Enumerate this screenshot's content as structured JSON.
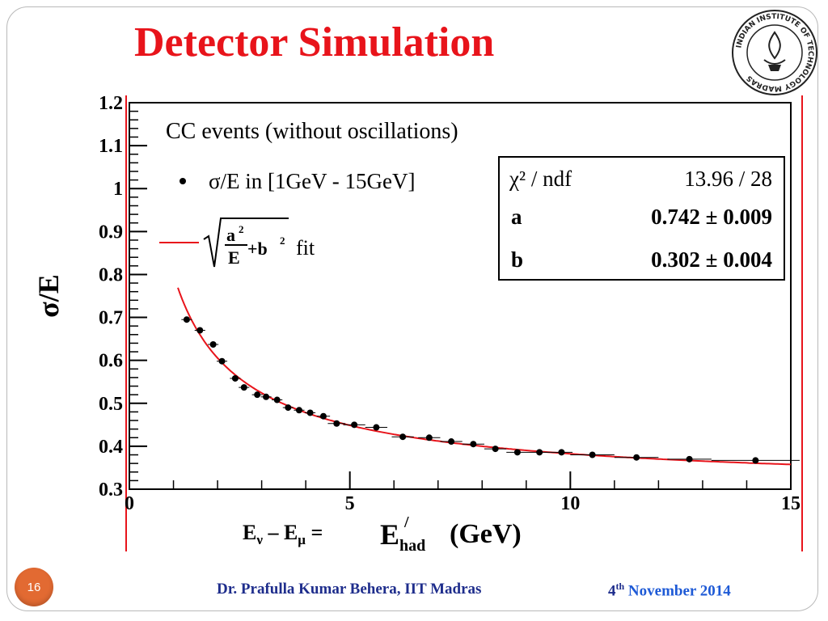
{
  "slide": {
    "title": "Detector Simulation",
    "page_number": "16",
    "author": "Dr. Prafulla Kumar Behera, IIT Madras",
    "date_day": "4",
    "date_suffix": "th",
    "date_rest": "November 2014",
    "equation": {
      "e1": "E",
      "sub1": "ν",
      "dash": " – ",
      "e2": "E",
      "sub2": "μ",
      "eq": " ="
    },
    "logo": {
      "name": "INDIAN INSTITUTE OF TECHNOLOGY MADRAS",
      "icon": "iit-madras-seal"
    }
  },
  "colors": {
    "title": "#e8141b",
    "fit": "#e8141b",
    "badge": "#e26a32",
    "author": "#1e2d8c",
    "date": "#1e5ad6"
  },
  "chart_data": {
    "type": "scatter",
    "title": "CC events (without oscillations)",
    "xlabel_main": "E",
    "xlabel_sub": "had",
    "xlabel_sup": "/",
    "xlabel_unit": "(GeV)",
    "ylabel": "σ/E",
    "xlim": [
      0,
      15
    ],
    "ylim": [
      0.3,
      1.2
    ],
    "x_ticks": [
      "0",
      "5",
      "10",
      "15"
    ],
    "y_ticks": [
      "0.3",
      "0.4",
      "0.5",
      "0.6",
      "0.7",
      "0.8",
      "0.9",
      "1",
      "1.1",
      "1.2"
    ],
    "legend": {
      "points_label": "σ/E in [1GeV - 15GeV]",
      "fit_label": "fit",
      "fit_formula_a2": "a",
      "fit_formula_E": "E",
      "fit_formula_b2": "+b",
      "placement": "top-left"
    },
    "stats": {
      "rows": [
        {
          "label": "χ² / ndf",
          "value": "13.96 / 28"
        },
        {
          "label": "a",
          "value": "0.742 ± 0.009"
        },
        {
          "label": "b",
          "value": "0.302 ± 0.004"
        }
      ],
      "placement": "top-right"
    },
    "fit": {
      "a": 0.742,
      "b": 0.302,
      "x_range": [
        1.1,
        15
      ]
    },
    "series": [
      {
        "name": "σ/E in [1GeV - 15GeV]",
        "x": [
          1.3,
          1.6,
          1.9,
          2.1,
          2.4,
          2.6,
          2.9,
          3.1,
          3.35,
          3.6,
          3.85,
          4.1,
          4.4,
          4.7,
          5.1,
          5.6,
          6.2,
          6.8,
          7.3,
          7.8,
          8.3,
          8.8,
          9.3,
          9.8,
          10.5,
          11.5,
          12.7,
          14.2
        ],
        "y": [
          0.695,
          0.67,
          0.637,
          0.598,
          0.558,
          0.537,
          0.52,
          0.515,
          0.508,
          0.49,
          0.484,
          0.478,
          0.47,
          0.453,
          0.45,
          0.444,
          0.422,
          0.42,
          0.411,
          0.405,
          0.394,
          0.386,
          0.386,
          0.386,
          0.38,
          0.374,
          0.37,
          0.367
        ],
        "xerr": [
          0.12,
          0.12,
          0.12,
          0.12,
          0.12,
          0.12,
          0.12,
          0.12,
          0.12,
          0.12,
          0.12,
          0.12,
          0.15,
          0.2,
          0.25,
          0.25,
          0.25,
          0.25,
          0.25,
          0.25,
          0.25,
          0.25,
          0.25,
          0.25,
          0.5,
          0.5,
          0.5,
          1.0
        ]
      }
    ]
  }
}
